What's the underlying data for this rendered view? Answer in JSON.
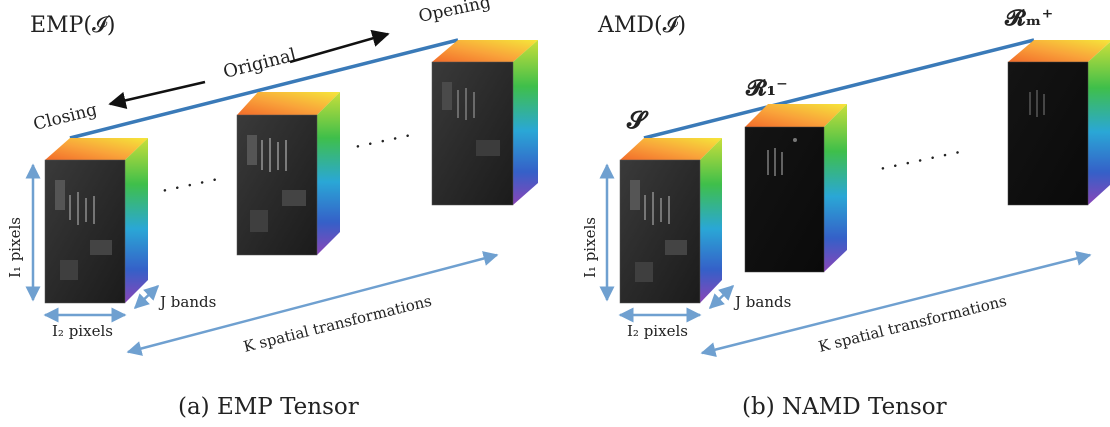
{
  "panel_a": {
    "title": "EMP(𝓘)",
    "direction_labels": {
      "opening": "Opening",
      "original": "Original",
      "closing": "Closing"
    },
    "dots": ". . . . .",
    "dots_right": ". . . . .",
    "dim_i1": "I₁ pixels",
    "dim_j": "J bands",
    "dim_i2": "I₂ pixels",
    "dim_k": "K spatial transformations",
    "caption": "(a) EMP Tensor"
  },
  "panel_b": {
    "title": "AMD(𝓘)",
    "label_s": "𝓢",
    "label_r1": "𝓡₁⁻",
    "label_rm": "𝓡ₘ⁺",
    "dots": ". . . . . . .",
    "dim_i1": "I₁ pixels",
    "dim_j": "J bands",
    "dim_i2": "I₂ pixels",
    "dim_k": "K spatial transformations",
    "caption": "(b) NAMD Tensor"
  },
  "colors": {
    "axis_line": "#3a7ab8",
    "dim_arrow": "#6fa0d0",
    "black_arrow": "#111111"
  }
}
